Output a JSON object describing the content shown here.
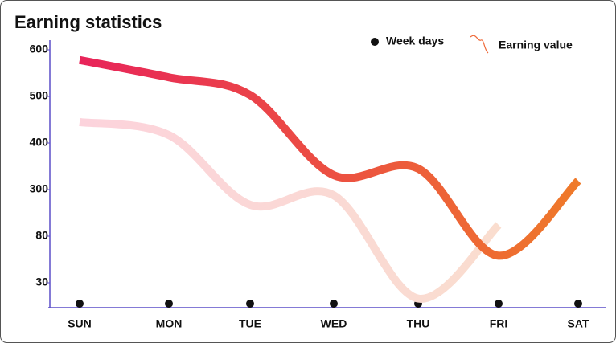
{
  "chart_data": {
    "type": "line",
    "title": "Earning statistics",
    "categories": [
      "SUN",
      "MON",
      "TUE",
      "WED",
      "THU",
      "FRI",
      "SAT"
    ],
    "marker_legend": "Week days",
    "series": [
      {
        "name": "Earning value",
        "colors": [
          "#e8245a",
          "#ef7a2a"
        ],
        "values": [
          578,
          541,
          503,
          331,
          345,
          59,
          319
        ]
      },
      {
        "colors": [
          "#fcd3dc",
          "#f9dfcc"
        ],
        "values": [
          445,
          417,
          228,
          273,
          11,
          133,
          null
        ]
      }
    ],
    "ylim": [
      0,
      620
    ],
    "yticks": [
      30,
      80,
      300,
      400,
      500,
      600
    ],
    "axis_color": "#5b4fc9"
  }
}
